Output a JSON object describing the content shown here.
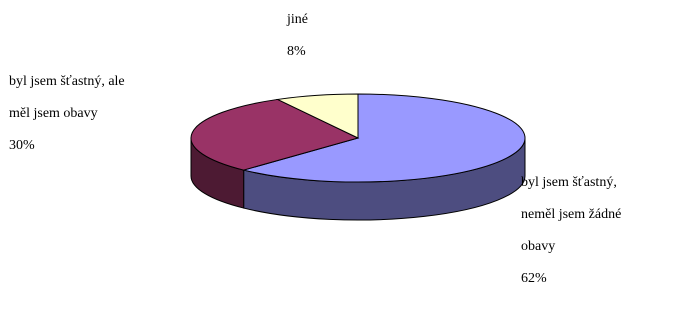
{
  "chart_data": {
    "type": "pie",
    "style": "3d",
    "title": "",
    "slices": [
      {
        "label_lines": [
          "byl jsem šťastný,",
          "neměl jsem žádné",
          "obavy"
        ],
        "value_label": "62%",
        "value": 62,
        "color": "#9999ff",
        "side_color": "#4d4d80"
      },
      {
        "label_lines": [
          "byl jsem šťastný, ale",
          "měl jsem obavy"
        ],
        "value_label": "30%",
        "value": 30,
        "color": "#993366",
        "side_color": "#4d1a33"
      },
      {
        "label_lines": [
          "jiné"
        ],
        "value_label": "8%",
        "value": 8,
        "color": "#ffffcc",
        "side_color": "#808066"
      }
    ]
  }
}
